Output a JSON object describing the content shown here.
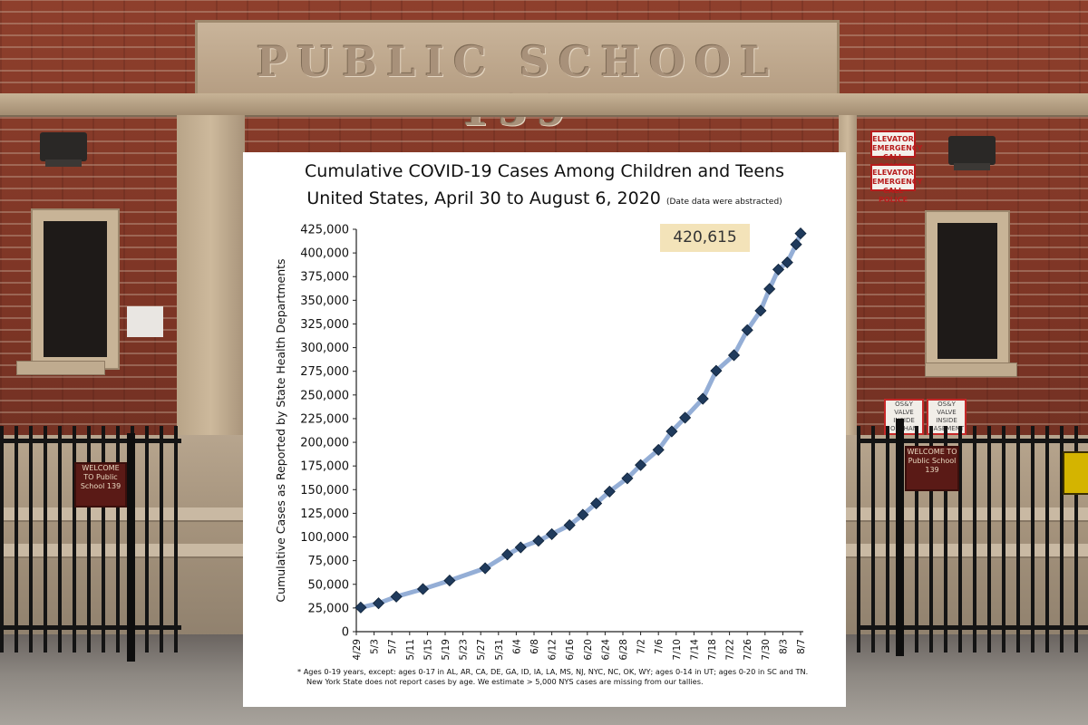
{
  "background": {
    "sign_text": "PUBLIC SCHOOL 139",
    "alert_sign_line1": "ELEVATOR EMERGENCY",
    "alert_sign_line2": "CALL POLICE",
    "valve_sign_1": "OS&Y VALVE INSIDE ORPHAN",
    "valve_sign_2": "OS&Y VALVE INSIDE BASEMENT",
    "plaque_text": "WELCOME TO Public School 139"
  },
  "chart": {
    "title_line1": "Cumulative COVID-19 Cases Among Children and Teens",
    "title_line2": "United States, April 30 to August 6, 2020",
    "title_note": "(Date data were abstracted)",
    "callout": "420,615",
    "footnote_line1": "* Ages 0-19 years, except: ages 0-17 in AL, AR, CA, DE, GA, ID, IA, LA, MS, NJ, NYC, NC, OK, WY; ages 0-14 in UT; ages 0-20 in SC and TN.",
    "footnote_line2": "New York State does not report cases by age. We estimate > 5,000 NYS cases are missing from our tallies."
  },
  "colors": {
    "line": "#94aed6",
    "marker": "#1f3a5c",
    "callout_bg": "#f3e3b9"
  },
  "chart_data": {
    "type": "line",
    "title": "Cumulative COVID-19 Cases Among Children and Teens United States, April 30 to August 6, 2020",
    "ylabel": "Cumulative Cases as Reported by State Health Departments",
    "xlabel": "",
    "ylim": [
      0,
      425000
    ],
    "y_ticks": [
      "0",
      "25,000",
      "50,000",
      "75,000",
      "100,000",
      "125,000",
      "150,000",
      "175,000",
      "200,000",
      "225,000",
      "250,000",
      "275,000",
      "300,000",
      "325,000",
      "350,000",
      "375,000",
      "400,000",
      "425,000"
    ],
    "x_ticks": [
      "4/29",
      "5/3",
      "5/7",
      "5/11",
      "5/15",
      "5/19",
      "5/23",
      "5/27",
      "5/31",
      "6/4",
      "6/8",
      "6/12",
      "6/16",
      "6/20",
      "6/24",
      "6/28",
      "7/2",
      "7/6",
      "7/10",
      "7/14",
      "7/18",
      "7/22",
      "7/26",
      "7/30",
      "8/3",
      "8/7"
    ],
    "x_range": [
      "2020-04-29",
      "2020-08-07"
    ],
    "grid": false,
    "legend": "none",
    "annotations": [
      "420,615"
    ],
    "series": [
      {
        "x": [
          "2020-04-30",
          "2020-05-04",
          "2020-05-08",
          "2020-05-14",
          "2020-05-20",
          "2020-05-28",
          "2020-06-02",
          "2020-06-05",
          "2020-06-09",
          "2020-06-12",
          "2020-06-16",
          "2020-06-19",
          "2020-06-22",
          "2020-06-25",
          "2020-06-29",
          "2020-07-02",
          "2020-07-06",
          "2020-07-09",
          "2020-07-12",
          "2020-07-16",
          "2020-07-19",
          "2020-07-23",
          "2020-07-26",
          "2020-07-29",
          "2020-07-31",
          "2020-08-02",
          "2020-08-04",
          "2020-08-06"
        ],
        "values": [
          25500,
          30000,
          37000,
          45000,
          54000,
          67000,
          81500,
          89000,
          96000,
          103000,
          112500,
          123500,
          135500,
          148000,
          162000,
          176000,
          192000,
          211500,
          226000,
          246000,
          275500,
          292000,
          318500,
          339000,
          362000,
          382500,
          390000,
          409000
        ],
        "last_value": 420615,
        "last_x": "2020-08-07"
      }
    ]
  }
}
